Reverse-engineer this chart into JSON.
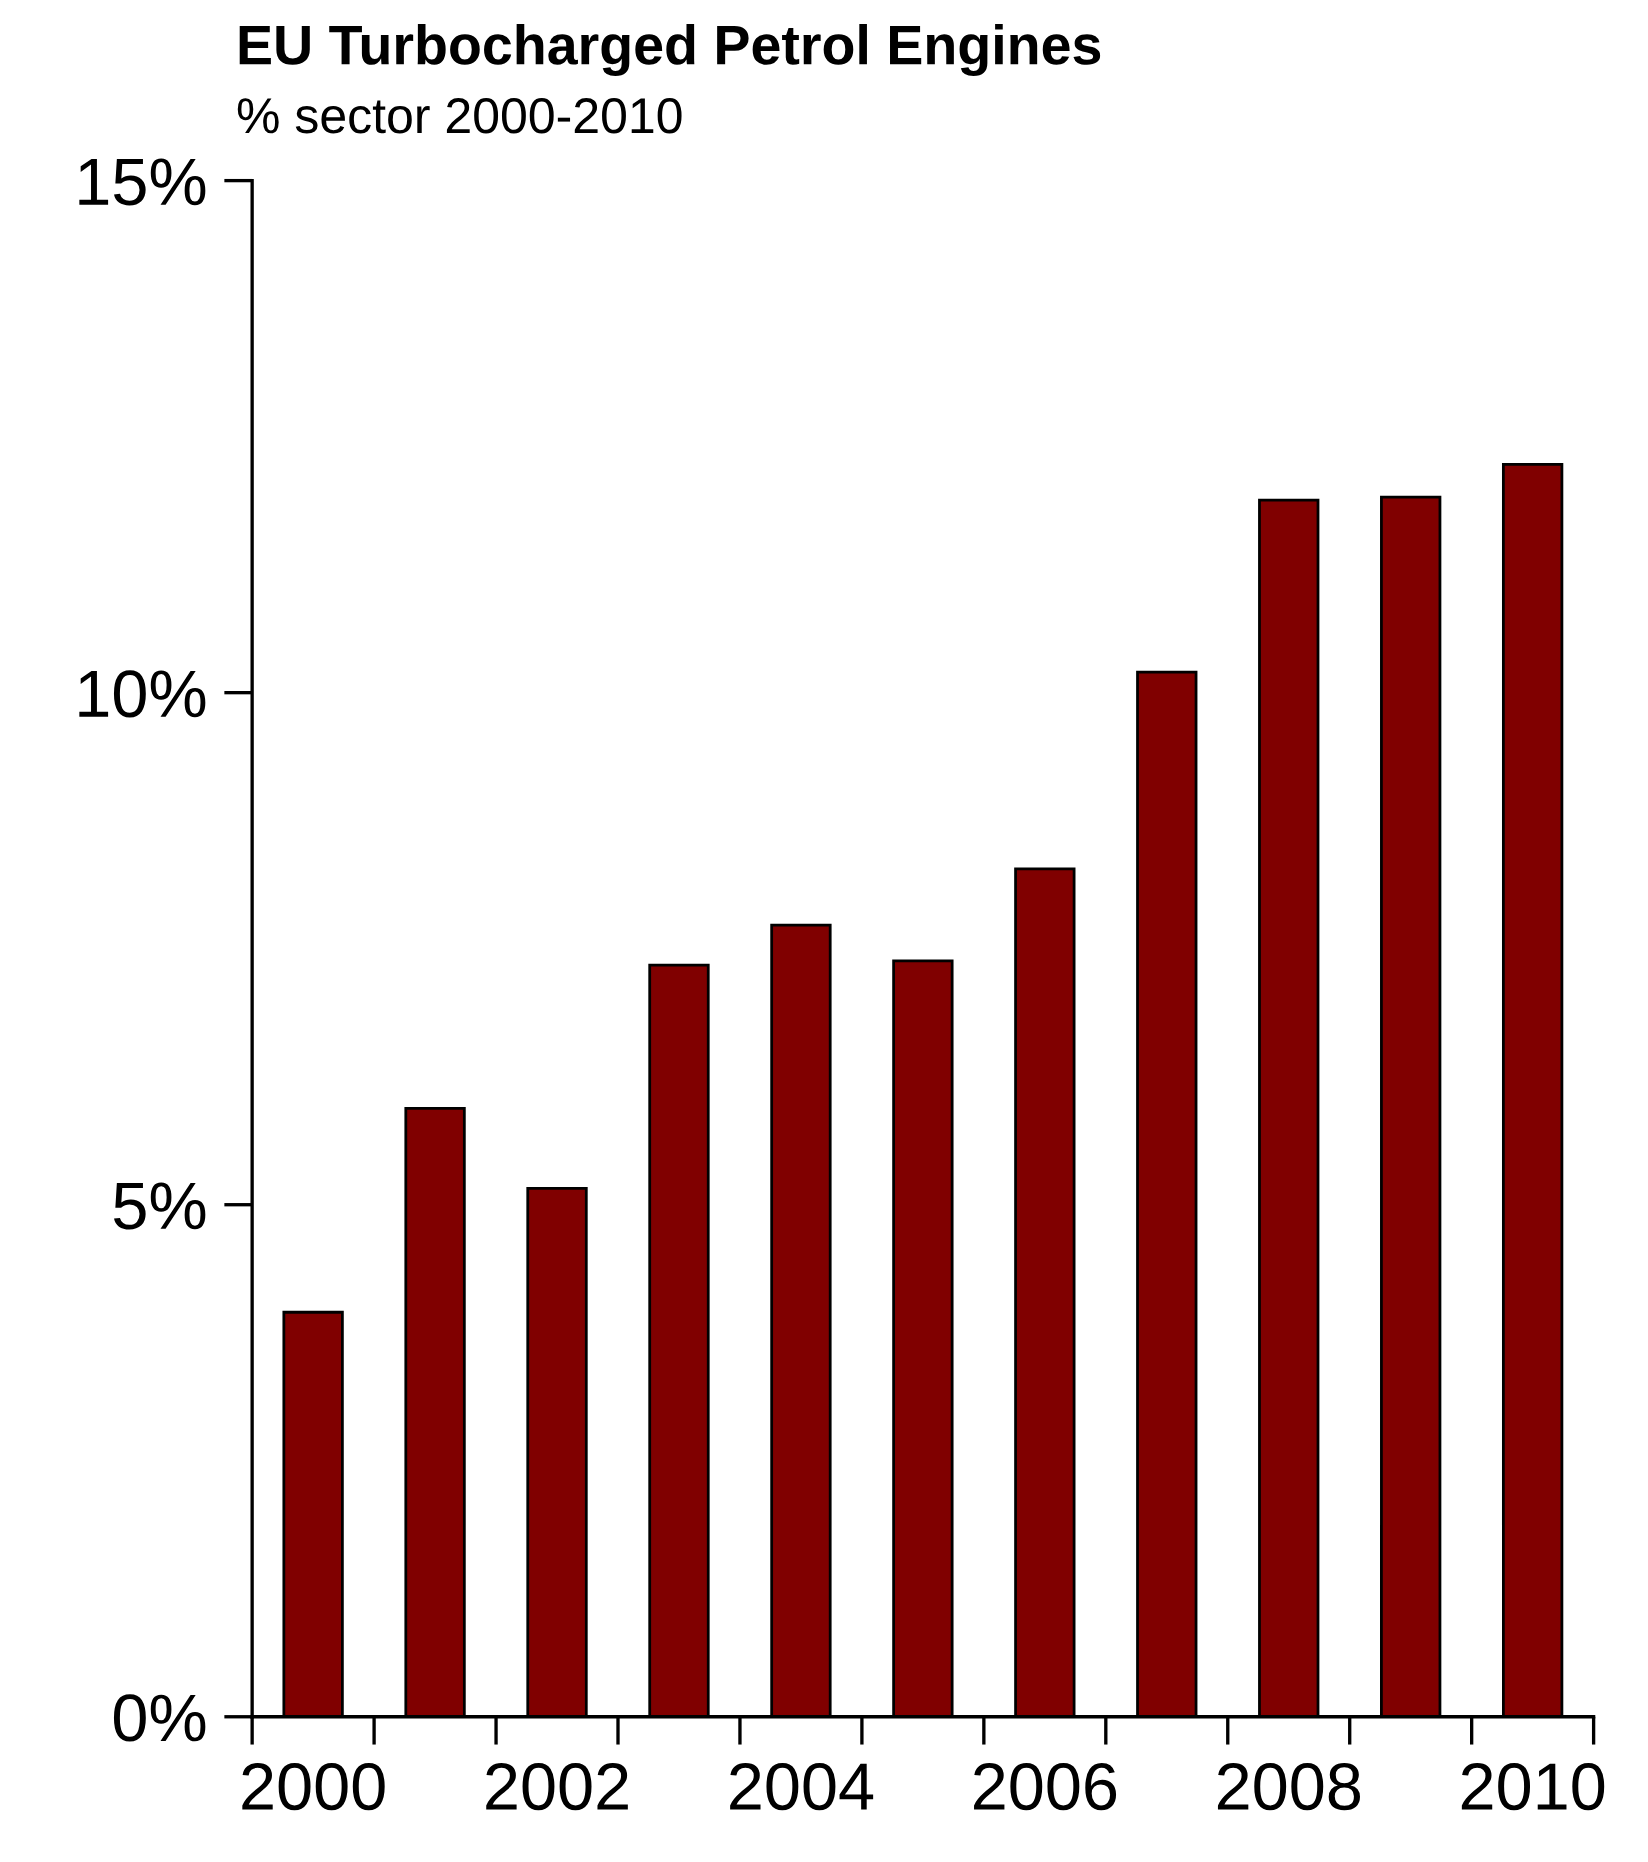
{
  "chart_data": {
    "type": "bar",
    "title": "EU Turbocharged Petrol Engines",
    "subtitle": "% sector 2000-2010",
    "categories": [
      "2000",
      null,
      "2002",
      null,
      "2004",
      null,
      "2006",
      null,
      "2008",
      null,
      "2010"
    ],
    "values": [
      3.95,
      5.94,
      5.16,
      7.34,
      7.73,
      7.38,
      8.28,
      10.2,
      11.88,
      11.91,
      12.23
    ],
    "color": "#800000",
    "ylim": [
      0,
      15
    ],
    "yticks": [
      {
        "value": 0,
        "label": "0%"
      },
      {
        "value": 5,
        "label": "5%"
      },
      {
        "value": 10,
        "label": "10%"
      },
      {
        "value": 15,
        "label": "15%"
      }
    ],
    "grid": false,
    "legend": false
  }
}
